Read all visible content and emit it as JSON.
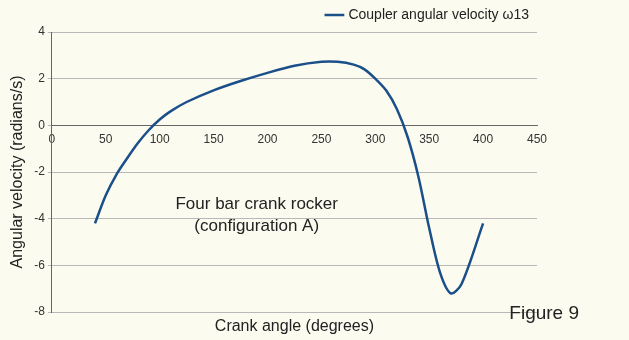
{
  "chart_data": {
    "type": "line",
    "x_label": "Crank angle (degrees)",
    "y_label": "Angular velocity (radians/s)",
    "annotation": [
      "Four bar crank rocker",
      "(configuration A)"
    ],
    "caption": "Figure 9",
    "x": [
      40,
      50,
      60,
      70,
      80,
      90,
      100,
      110,
      125,
      150,
      175,
      200,
      225,
      250,
      265,
      280,
      290,
      300,
      310,
      320,
      330,
      340,
      350,
      360,
      370,
      380,
      400
    ],
    "series": [
      {
        "name": "Coupler angular velocity ω13",
        "color": "#1a4f8a",
        "values": [
          -4.2,
          -3.0,
          -2.1,
          -1.4,
          -0.75,
          -0.2,
          0.25,
          0.6,
          1.0,
          1.5,
          1.9,
          2.25,
          2.55,
          2.72,
          2.72,
          2.6,
          2.4,
          2.0,
          1.5,
          0.7,
          -0.5,
          -2.2,
          -4.4,
          -6.3,
          -7.2,
          -6.8,
          -4.2
        ]
      }
    ],
    "xlim": [
      0,
      450
    ],
    "xticks": [
      0,
      50,
      100,
      150,
      200,
      250,
      300,
      350,
      400,
      450
    ],
    "ylim": [
      -8,
      4
    ],
    "yticks": [
      -8,
      -6,
      -4,
      -2,
      0,
      2,
      4
    ],
    "grid": true,
    "legend": "top-right"
  }
}
